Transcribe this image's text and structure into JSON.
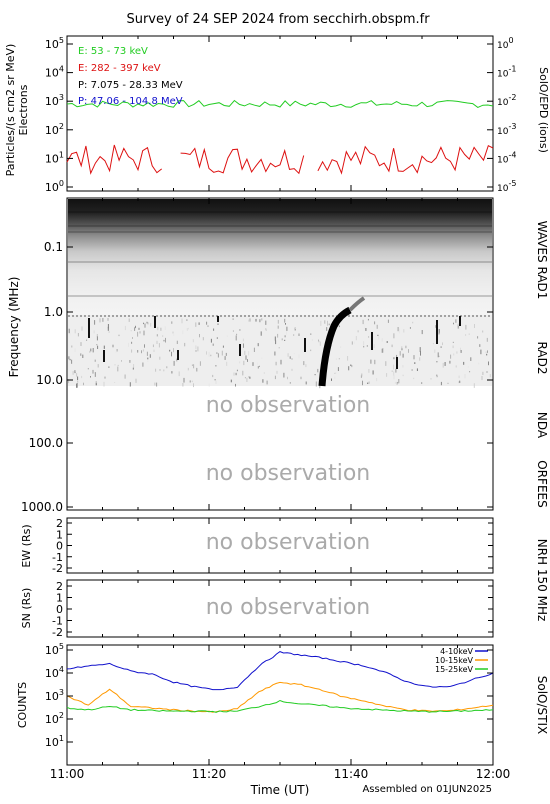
{
  "title": "Survey of 24 SEP 2024 from secchirh.obspm.fr",
  "footer": {
    "xlabel": "Time (UT)",
    "assembled": "Assembled on 01JUN2025",
    "time_ticks": [
      "11:00",
      "11:20",
      "11:40",
      "12:00"
    ]
  },
  "colors": {
    "frame": "#000000",
    "green": "#22cc22",
    "red": "#dd1111",
    "black": "#000000",
    "blue": "#1111cc",
    "orange": "#ff9900",
    "grey_text": "#aaaaaa"
  },
  "panel_labels": {
    "epd_right": "SolO/EPD (ions)",
    "epd_left": "Particles/(s cm2 sr MeV)",
    "epd_left2": "Electrons",
    "freq_left": "Frequency (MHz)",
    "waves": "WAVES RAD1",
    "rad2": "RAD2",
    "nda": "NDA",
    "orfees": "ORFEES",
    "nrh": "NRH 150 MHz",
    "ew": "EW (Rs)",
    "sn": "SN (Rs)",
    "counts": "COUNTS",
    "stix": "SolO/STIX",
    "no_obs_1": "no observation",
    "no_obs_2": "no observation",
    "no_obs_3": "no observation",
    "no_obs_4": "no observation"
  },
  "chart_data": [
    {
      "type": "line",
      "panel": "SolO/EPD",
      "x_range": [
        "11:00",
        "12:00"
      ],
      "y_scale": "log",
      "ylim": [
        1,
        100000
      ],
      "y_ticks": [
        "10^0",
        "10^1",
        "10^2",
        "10^3",
        "10^4",
        "10^5"
      ],
      "y2_scale": "log",
      "y2_ticks": [
        "10^-5",
        "10^-4",
        "10^-3",
        "10^-2",
        "10^-1",
        "10^0"
      ],
      "legend": [
        {
          "label": "E: 53 - 73 keV",
          "color": "#22cc22"
        },
        {
          "label": "E: 282 - 397 keV",
          "color": "#dd1111"
        },
        {
          "label": "P: 7.075 - 28.33 MeV",
          "color": "#000000"
        },
        {
          "label": "P: 47.06 - 104.8 MeV",
          "color": "#1111cc"
        }
      ],
      "series": [
        {
          "name": "E: 53 - 73 keV",
          "approx_level": 800
        },
        {
          "name": "E: 282 - 397 keV",
          "approx_range": [
            3,
            30
          ]
        }
      ]
    },
    {
      "type": "heatmap",
      "panel": "WAVES RAD1 / RAD2 dynamic spectrum",
      "y_scale": "log",
      "y_inverted": true,
      "ylim": [
        0.01,
        1000
      ],
      "y_ticks": [
        "0.1",
        "1.0",
        "10.0",
        "100.0",
        "1000.0"
      ],
      "features": [
        {
          "kind": "type III burst",
          "time": "11:36",
          "freq_range_MHz": [
            1.0,
            12
          ]
        }
      ]
    },
    {
      "type": "line",
      "panel": "NRH EW",
      "ylim": [
        -2,
        2
      ],
      "y_ticks": [
        "2",
        "1",
        "0",
        "-1",
        "-2"
      ]
    },
    {
      "type": "line",
      "panel": "NRH SN",
      "ylim": [
        -2,
        2
      ],
      "y_ticks": [
        "2",
        "1",
        "0",
        "-1",
        "-2"
      ]
    },
    {
      "type": "line",
      "panel": "SolO/STIX",
      "y_scale": "log",
      "ylim": [
        1,
        100000
      ],
      "y_ticks": [
        "10^1",
        "10^2",
        "10^3",
        "10^4",
        "10^5"
      ],
      "legend": [
        {
          "label": "4-10keV",
          "color": "#1111cc"
        },
        {
          "label": "10-15keV",
          "color": "#ff9900"
        },
        {
          "label": "15-25keV",
          "color": "#22cc22"
        }
      ],
      "series": [
        {
          "name": "4-10keV",
          "x_min": [
            0,
            3,
            6,
            9,
            12,
            15,
            18,
            21,
            24,
            27,
            30,
            33,
            36,
            39,
            42,
            45,
            48,
            51,
            54,
            57,
            60
          ],
          "values": [
            15000,
            20000,
            25000,
            12000,
            9000,
            4000,
            2500,
            1800,
            2500,
            20000,
            80000,
            60000,
            45000,
            30000,
            20000,
            10000,
            4000,
            2500,
            2500,
            5000,
            10000
          ]
        },
        {
          "name": "10-15keV",
          "x_min": [
            0,
            3,
            6,
            9,
            12,
            15,
            18,
            21,
            24,
            27,
            30,
            33,
            36,
            39,
            42,
            45,
            48,
            51,
            54,
            57,
            60
          ],
          "values": [
            1000,
            400,
            2000,
            350,
            300,
            250,
            220,
            200,
            280,
            1500,
            4000,
            3000,
            1800,
            900,
            600,
            350,
            250,
            220,
            230,
            300,
            400
          ]
        },
        {
          "name": "15-25keV",
          "x_min": [
            0,
            3,
            6,
            9,
            12,
            15,
            18,
            21,
            24,
            27,
            30,
            33,
            36,
            39,
            42,
            45,
            48,
            51,
            54,
            57,
            60
          ],
          "values": [
            300,
            250,
            350,
            250,
            230,
            220,
            220,
            210,
            220,
            350,
            600,
            450,
            380,
            300,
            270,
            240,
            220,
            210,
            215,
            230,
            250
          ]
        }
      ]
    }
  ]
}
